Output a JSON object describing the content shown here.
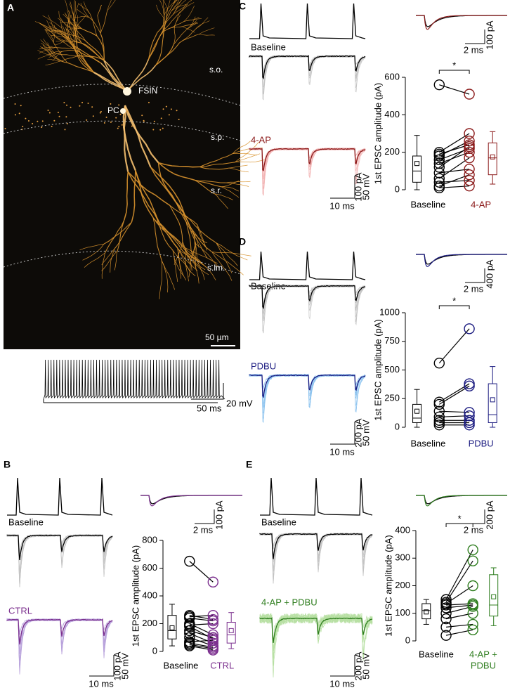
{
  "image_panel": {
    "letter": "A",
    "layers": [
      "s.o.",
      "s.p.",
      "s.r.",
      "s.lm."
    ],
    "cells": [
      "FSIN",
      "PC"
    ],
    "scale_bar": "50 µm",
    "train_scale": [
      "50 ms",
      "20 mV"
    ]
  },
  "chart_data": [
    {
      "type": "paired-box",
      "panel": "B",
      "ylabel": "1st EPSC amplitude (pA)",
      "ylim": [
        0,
        800
      ],
      "yticks": [
        0,
        200,
        400,
        600,
        800
      ],
      "trace_labels": [
        "Baseline",
        "CTRL"
      ],
      "trace_scale": [
        "100 pA",
        "50 mV",
        "10 ms"
      ],
      "inset_scale": [
        "100 pA",
        "2 ms"
      ],
      "groups": [
        {
          "label": [
            "Baseline"
          ],
          "color": "#000000",
          "trace_color": "#c4c4c4",
          "values": [
            650,
            260,
            250,
            240,
            200,
            190,
            180,
            150,
            130,
            100,
            70,
            60,
            50,
            40
          ],
          "box": {
            "min": 40,
            "q1": 90,
            "median": 150,
            "q3": 260,
            "max": 340,
            "mean": 170
          }
        },
        {
          "label": [
            "CTRL"
          ],
          "color": "#7b2f8e",
          "trace_color": "#b9a3dc",
          "values": [
            500,
            230,
            260,
            220,
            120,
            200,
            90,
            100,
            60,
            40,
            80,
            30,
            20,
            10
          ],
          "box": {
            "min": 20,
            "q1": 60,
            "median": 120,
            "q3": 210,
            "max": 280,
            "mean": 150
          }
        }
      ]
    },
    {
      "type": "paired-box",
      "panel": "C",
      "ylabel": "1st EPSC amplitude (pA)",
      "ylim": [
        0,
        600
      ],
      "yticks": [
        0,
        200,
        400,
        600
      ],
      "significance": "*",
      "trace_labels": [
        "Baseline",
        "4-AP"
      ],
      "trace_scale": [
        "100 pA",
        "50 mV",
        "10 ms"
      ],
      "inset_scale": [
        "100 pA",
        "2 ms"
      ],
      "groups": [
        {
          "label": [
            "Baseline"
          ],
          "color": "#000000",
          "trace_color": "#c4c4c4",
          "values": [
            560,
            200,
            190,
            180,
            160,
            140,
            120,
            90,
            60,
            40,
            20,
            10
          ],
          "box": {
            "min": 0,
            "q1": 40,
            "median": 100,
            "q3": 180,
            "max": 290,
            "mean": 140
          }
        },
        {
          "label": [
            "4-AP"
          ],
          "color": "#8b1a1a",
          "trace_color": "#f2b3b3",
          "values": [
            510,
            300,
            240,
            260,
            220,
            200,
            230,
            110,
            170,
            50,
            80,
            20
          ],
          "box": {
            "min": 30,
            "q1": 80,
            "median": 170,
            "q3": 250,
            "max": 310,
            "mean": 175
          }
        }
      ]
    },
    {
      "type": "paired-box",
      "panel": "D",
      "ylabel": "1st EPSC amplitude (pA)",
      "ylim": [
        0,
        1000
      ],
      "yticks": [
        0,
        250,
        500,
        750,
        1000
      ],
      "significance": "*",
      "trace_labels": [
        "Baseline",
        "PDBU"
      ],
      "trace_scale": [
        "200 pA",
        "50 mV",
        "10 ms"
      ],
      "inset_scale": [
        "400 pA",
        "2 ms"
      ],
      "groups": [
        {
          "label": [
            "Baseline"
          ],
          "color": "#000000",
          "trace_color": "#c4c4c4",
          "values": [
            560,
            220,
            200,
            140,
            90,
            60,
            40,
            20
          ],
          "box": {
            "min": 0,
            "q1": 40,
            "median": 80,
            "q3": 200,
            "max": 330,
            "mean": 140
          }
        },
        {
          "label": [
            "PDBU"
          ],
          "color": "#1a1a80",
          "trace_color": "#8ec4ef",
          "values": [
            860,
            380,
            360,
            130,
            100,
            60,
            40,
            20
          ],
          "box": {
            "min": 0,
            "q1": 40,
            "median": 110,
            "q3": 380,
            "max": 530,
            "mean": 240
          }
        }
      ]
    },
    {
      "type": "paired-box",
      "panel": "E",
      "ylabel": "1st EPSC amplitude (pA)",
      "ylim": [
        0,
        400
      ],
      "yticks": [
        0,
        100,
        200,
        300,
        400
      ],
      "significance": "*",
      "trace_labels": [
        "Baseline",
        "4-AP + PDBU"
      ],
      "trace_scale": [
        "200 pA",
        "50 mV",
        "10 ms"
      ],
      "inset_scale": [
        "200 pA",
        "2 ms"
      ],
      "groups": [
        {
          "label": [
            "Baseline"
          ],
          "color": "#000000",
          "trace_color": "#c4c4c4",
          "values": [
            150,
            140,
            135,
            130,
            120,
            100,
            80,
            50,
            20
          ],
          "box": {
            "min": 60,
            "q1": 80,
            "median": 110,
            "q3": 135,
            "max": 150,
            "mean": 105
          }
        },
        {
          "label": [
            "4-AP +",
            "PDBU"
          ],
          "color": "#2e7d1e",
          "trace_color": "#b8e0a4",
          "values": [
            330,
            290,
            200,
            135,
            130,
            125,
            100,
            60,
            40
          ],
          "box": {
            "min": 55,
            "q1": 90,
            "median": 130,
            "q3": 240,
            "max": 265,
            "mean": 160
          }
        }
      ]
    }
  ]
}
